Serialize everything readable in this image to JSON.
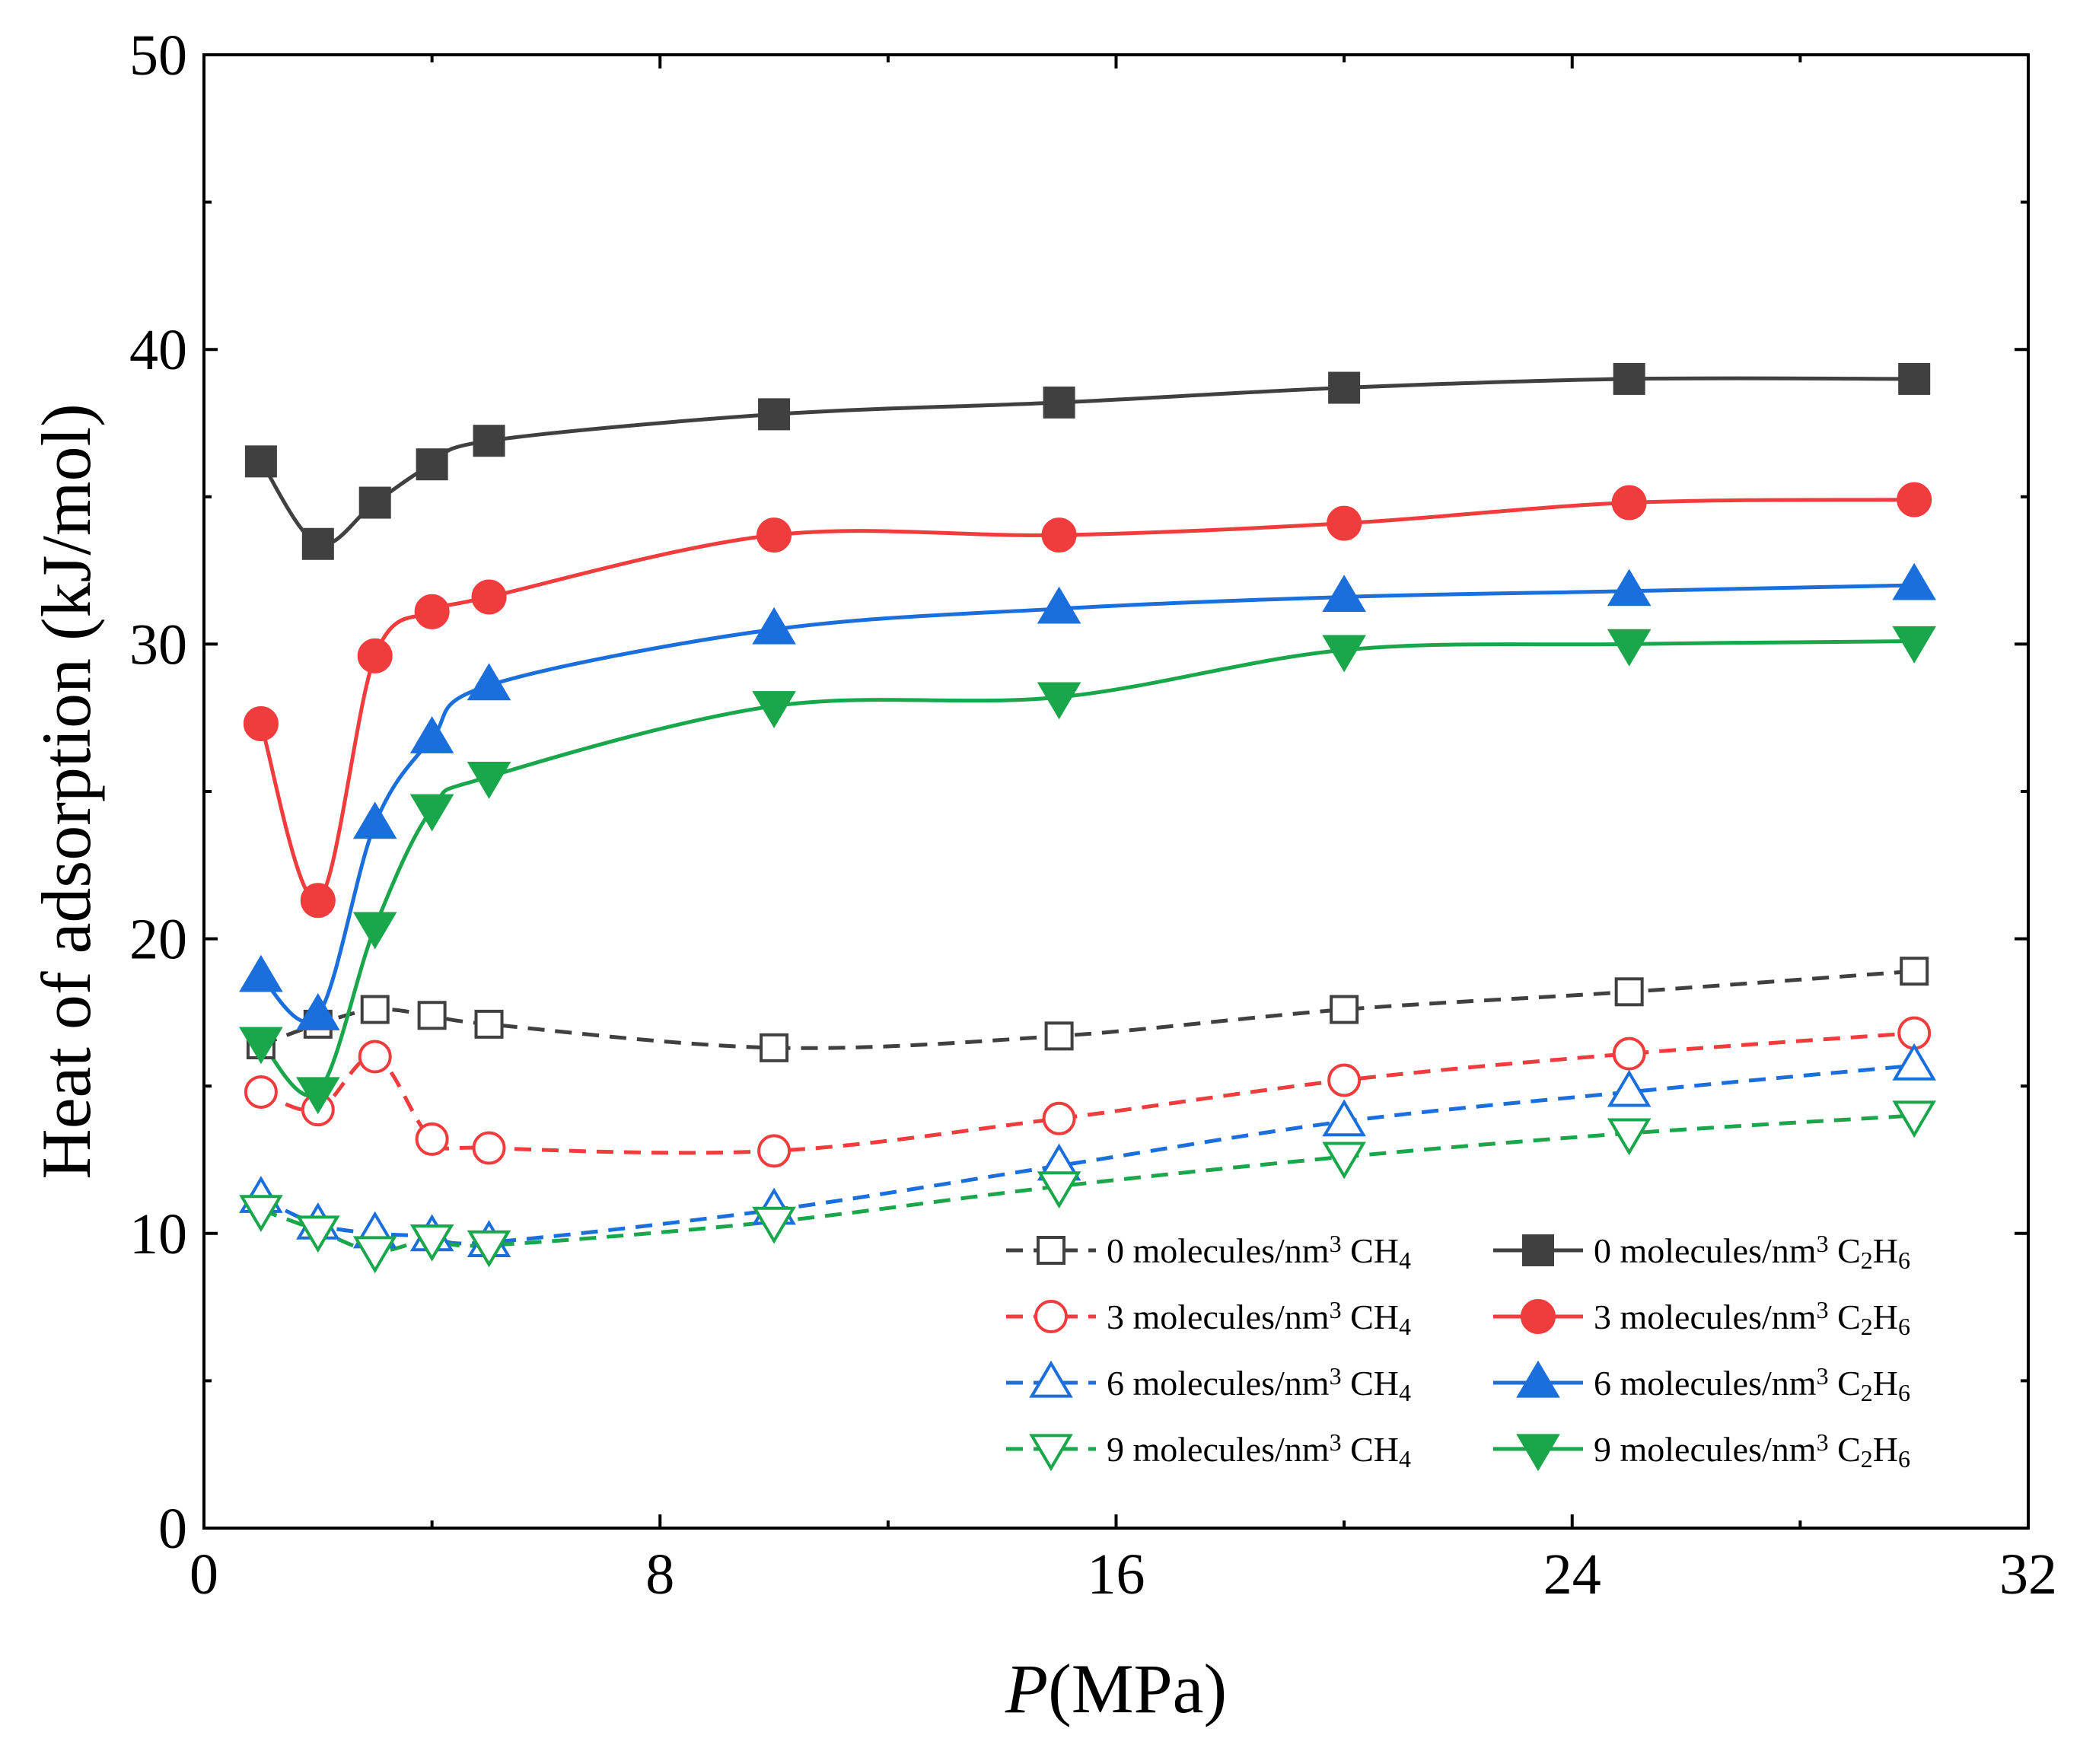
{
  "chart_data": {
    "type": "line",
    "title": "",
    "xlabel": "P(MPa)",
    "xlabel_parts": {
      "italic": "P",
      "rest": "(MPa)"
    },
    "ylabel": "Heat of adsorption (kJ/mol)",
    "xlim": [
      0,
      32
    ],
    "ylim": [
      0,
      50
    ],
    "x_ticks": [
      0,
      8,
      16,
      24,
      32
    ],
    "y_ticks": [
      0,
      10,
      20,
      30,
      40,
      50
    ],
    "grid": false,
    "legend_position": "bottom-right",
    "x": [
      1,
      2,
      3,
      4,
      5,
      10,
      15,
      20,
      25,
      30
    ],
    "series": [
      {
        "label_num": "0",
        "label_unit": "molecules/nm",
        "label_sup": "3",
        "gas": "CH4",
        "gas_parts": [
          "CH",
          "4"
        ],
        "color": "#404040",
        "marker": "square",
        "filled": false,
        "dashed": true,
        "values": [
          16.4,
          17.1,
          17.6,
          17.4,
          17.1,
          16.3,
          16.7,
          17.6,
          18.2,
          18.9
        ]
      },
      {
        "label_num": "0",
        "label_unit": "molecules/nm",
        "label_sup": "3",
        "gas": "C2H6",
        "gas_parts": [
          "C",
          "2",
          "H",
          "6"
        ],
        "color": "#404040",
        "marker": "square",
        "filled": true,
        "dashed": false,
        "values": [
          36.2,
          33.4,
          34.8,
          36.1,
          36.9,
          37.8,
          38.2,
          38.7,
          39.0,
          39.0
        ]
      },
      {
        "label_num": "3",
        "label_unit": "molecules/nm",
        "label_sup": "3",
        "gas": "CH4",
        "gas_parts": [
          "CH",
          "4"
        ],
        "color": "#f03c3c",
        "marker": "circle",
        "filled": false,
        "dashed": true,
        "values": [
          14.8,
          14.2,
          16.0,
          13.2,
          12.9,
          12.8,
          13.9,
          15.2,
          16.1,
          16.8
        ]
      },
      {
        "label_num": "3",
        "label_unit": "molecules/nm",
        "label_sup": "3",
        "gas": "C2H6",
        "gas_parts": [
          "C",
          "2",
          "H",
          "6"
        ],
        "color": "#f03c3c",
        "marker": "circle",
        "filled": true,
        "dashed": false,
        "values": [
          27.3,
          21.3,
          29.6,
          31.1,
          31.6,
          33.7,
          33.7,
          34.1,
          34.8,
          34.9
        ]
      },
      {
        "label_num": "6",
        "label_unit": "molecules/nm",
        "label_sup": "3",
        "gas": "CH4",
        "gas_parts": [
          "CH",
          "4"
        ],
        "color": "#1a6fdc",
        "marker": "triangle-up",
        "filled": false,
        "dashed": true,
        "values": [
          11.2,
          10.3,
          10.0,
          9.9,
          9.7,
          10.8,
          12.3,
          13.8,
          14.8,
          15.7
        ]
      },
      {
        "label_num": "6",
        "label_unit": "molecules/nm",
        "label_sup": "3",
        "gas": "C2H6",
        "gas_parts": [
          "C",
          "2",
          "H",
          "6"
        ],
        "color": "#1a6fdc",
        "marker": "triangle-up",
        "filled": true,
        "dashed": false,
        "values": [
          18.7,
          17.4,
          23.9,
          26.8,
          28.6,
          30.5,
          31.2,
          31.6,
          31.8,
          32.0
        ]
      },
      {
        "label_num": "9",
        "label_unit": "molecules/nm",
        "label_sup": "3",
        "gas": "CH4",
        "gas_parts": [
          "CH",
          "4"
        ],
        "color": "#1aa64a",
        "marker": "triangle-down",
        "filled": false,
        "dashed": true,
        "values": [
          10.8,
          10.1,
          9.4,
          9.8,
          9.6,
          10.4,
          11.6,
          12.6,
          13.4,
          14.0
        ]
      },
      {
        "label_num": "9",
        "label_unit": "molecules/nm",
        "label_sup": "3",
        "gas": "C2H6",
        "gas_parts": [
          "C",
          "2",
          "H",
          "6"
        ],
        "color": "#1aa64a",
        "marker": "triangle-down",
        "filled": true,
        "dashed": false,
        "values": [
          16.5,
          14.8,
          20.4,
          24.4,
          25.5,
          27.9,
          28.2,
          29.8,
          30.0,
          30.1
        ]
      }
    ]
  }
}
